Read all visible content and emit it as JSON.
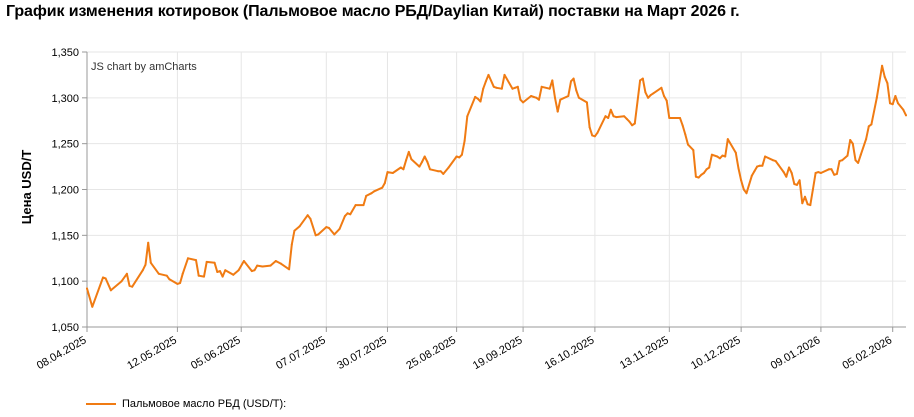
{
  "title": "График изменения котировок (Пальмовое масло РБД/Daylian Китай) поставки на Март 2026 г.",
  "credit": "JS chart by amCharts",
  "colors": {
    "series": "#f07b13",
    "grid": "#e6e6e6",
    "axis": "#999999"
  },
  "chart_data": {
    "type": "line",
    "ylabel": "Цена USD/T",
    "ylim": [
      1050,
      1350
    ],
    "yticks": [
      1050,
      1100,
      1150,
      1200,
      1250,
      1300,
      1350
    ],
    "ytick_labels": [
      "1,050",
      "1,100",
      "1,150",
      "1,200",
      "1,250",
      "1,300",
      "1,350"
    ],
    "x_range": [
      "2025-04-08",
      "2026-02-10"
    ],
    "xticks": [
      "2025-04-08",
      "2025-05-12",
      "2025-06-05",
      "2025-07-07",
      "2025-07-30",
      "2025-08-25",
      "2025-09-19",
      "2025-10-16",
      "2025-11-13",
      "2025-12-10",
      "2026-01-09",
      "2026-02-05"
    ],
    "xtick_labels": [
      "08.04.2025",
      "12.05.2025",
      "05.06.2025",
      "07.07.2025",
      "30.07.2025",
      "25.08.2025",
      "19.09.2025",
      "16.10.2025",
      "13.11.2025",
      "10.12.2025",
      "09.01.2026",
      "05.02.2026"
    ],
    "grid": true,
    "legend_position": "bottom-left",
    "series": [
      {
        "name": "Пальмовое масло РБД (USD/T):",
        "color": "#f07b13",
        "points": [
          [
            "2025-04-08",
            1092
          ],
          [
            "2025-04-10",
            1072
          ],
          [
            "2025-04-14",
            1104
          ],
          [
            "2025-04-15",
            1103
          ],
          [
            "2025-04-17",
            1090
          ],
          [
            "2025-04-21",
            1100
          ],
          [
            "2025-04-23",
            1108
          ],
          [
            "2025-04-24",
            1095
          ],
          [
            "2025-04-25",
            1094
          ],
          [
            "2025-04-29",
            1112
          ],
          [
            "2025-04-30",
            1118
          ],
          [
            "2025-05-01",
            1142
          ],
          [
            "2025-05-02",
            1120
          ],
          [
            "2025-05-05",
            1108
          ],
          [
            "2025-05-08",
            1106
          ],
          [
            "2025-05-09",
            1102
          ],
          [
            "2025-05-12",
            1097
          ],
          [
            "2025-05-13",
            1098
          ],
          [
            "2025-05-14",
            1108
          ],
          [
            "2025-05-16",
            1125
          ],
          [
            "2025-05-19",
            1123
          ],
          [
            "2025-05-20",
            1106
          ],
          [
            "2025-05-22",
            1105
          ],
          [
            "2025-05-23",
            1121
          ],
          [
            "2025-05-26",
            1120
          ],
          [
            "2025-05-27",
            1110
          ],
          [
            "2025-05-28",
            1111
          ],
          [
            "2025-05-29",
            1105
          ],
          [
            "2025-05-30",
            1112
          ],
          [
            "2025-06-02",
            1107
          ],
          [
            "2025-06-04",
            1112
          ],
          [
            "2025-06-06",
            1122
          ],
          [
            "2025-06-09",
            1111
          ],
          [
            "2025-06-10",
            1112
          ],
          [
            "2025-06-11",
            1117
          ],
          [
            "2025-06-13",
            1116
          ],
          [
            "2025-06-16",
            1117
          ],
          [
            "2025-06-18",
            1122
          ],
          [
            "2025-06-20",
            1119
          ],
          [
            "2025-06-23",
            1113
          ],
          [
            "2025-06-24",
            1140
          ],
          [
            "2025-06-25",
            1155
          ],
          [
            "2025-06-27",
            1160
          ],
          [
            "2025-06-30",
            1172
          ],
          [
            "2025-07-01",
            1168
          ],
          [
            "2025-07-03",
            1150
          ],
          [
            "2025-07-04",
            1151
          ],
          [
            "2025-07-07",
            1159
          ],
          [
            "2025-07-08",
            1158
          ],
          [
            "2025-07-10",
            1151
          ],
          [
            "2025-07-12",
            1157
          ],
          [
            "2025-07-14",
            1171
          ],
          [
            "2025-07-15",
            1174
          ],
          [
            "2025-07-16",
            1173
          ],
          [
            "2025-07-18",
            1183
          ],
          [
            "2025-07-21",
            1183
          ],
          [
            "2025-07-22",
            1193
          ],
          [
            "2025-07-24",
            1196
          ],
          [
            "2025-07-25",
            1198
          ],
          [
            "2025-07-28",
            1202
          ],
          [
            "2025-07-29",
            1207
          ],
          [
            "2025-07-30",
            1219
          ],
          [
            "2025-08-01",
            1218
          ],
          [
            "2025-08-04",
            1224
          ],
          [
            "2025-08-05",
            1222
          ],
          [
            "2025-08-06",
            1232
          ],
          [
            "2025-08-07",
            1241
          ],
          [
            "2025-08-08",
            1233
          ],
          [
            "2025-08-11",
            1225
          ],
          [
            "2025-08-12",
            1230
          ],
          [
            "2025-08-13",
            1236
          ],
          [
            "2025-08-14",
            1230
          ],
          [
            "2025-08-15",
            1222
          ],
          [
            "2025-08-18",
            1220
          ],
          [
            "2025-08-19",
            1220
          ],
          [
            "2025-08-20",
            1217
          ],
          [
            "2025-08-22",
            1224
          ],
          [
            "2025-08-25",
            1236
          ],
          [
            "2025-08-26",
            1235
          ],
          [
            "2025-08-27",
            1238
          ],
          [
            "2025-08-28",
            1253
          ],
          [
            "2025-08-29",
            1280
          ],
          [
            "2025-09-01",
            1301
          ],
          [
            "2025-09-02",
            1299
          ],
          [
            "2025-09-03",
            1296
          ],
          [
            "2025-09-04",
            1310
          ],
          [
            "2025-09-05",
            1318
          ],
          [
            "2025-09-06",
            1325
          ],
          [
            "2025-09-08",
            1312
          ],
          [
            "2025-09-09",
            1311
          ],
          [
            "2025-09-11",
            1310
          ],
          [
            "2025-09-12",
            1325
          ],
          [
            "2025-09-15",
            1310
          ],
          [
            "2025-09-16",
            1311
          ],
          [
            "2025-09-17",
            1312
          ],
          [
            "2025-09-18",
            1298
          ],
          [
            "2025-09-19",
            1295
          ],
          [
            "2025-09-22",
            1302
          ],
          [
            "2025-09-23",
            1301
          ],
          [
            "2025-09-24",
            1300
          ],
          [
            "2025-09-25",
            1298
          ],
          [
            "2025-09-26",
            1312
          ],
          [
            "2025-09-29",
            1310
          ],
          [
            "2025-09-30",
            1319
          ],
          [
            "2025-10-01",
            1300
          ],
          [
            "2025-10-02",
            1285
          ],
          [
            "2025-10-03",
            1298
          ],
          [
            "2025-10-06",
            1302
          ],
          [
            "2025-10-07",
            1318
          ],
          [
            "2025-10-08",
            1321
          ],
          [
            "2025-10-09",
            1308
          ],
          [
            "2025-10-10",
            1300
          ],
          [
            "2025-10-13",
            1295
          ],
          [
            "2025-10-14",
            1268
          ],
          [
            "2025-10-15",
            1259
          ],
          [
            "2025-10-16",
            1258
          ],
          [
            "2025-10-17",
            1262
          ],
          [
            "2025-10-20",
            1280
          ],
          [
            "2025-10-21",
            1278
          ],
          [
            "2025-10-22",
            1287
          ],
          [
            "2025-10-23",
            1280
          ],
          [
            "2025-10-24",
            1279
          ],
          [
            "2025-10-27",
            1280
          ],
          [
            "2025-10-28",
            1277
          ],
          [
            "2025-10-29",
            1274
          ],
          [
            "2025-10-30",
            1270
          ],
          [
            "2025-10-31",
            1272
          ],
          [
            "2025-11-02",
            1319
          ],
          [
            "2025-11-03",
            1321
          ],
          [
            "2025-11-04",
            1306
          ],
          [
            "2025-11-05",
            1300
          ],
          [
            "2025-11-06",
            1303
          ],
          [
            "2025-11-07",
            1305
          ],
          [
            "2025-11-10",
            1311
          ],
          [
            "2025-11-11",
            1302
          ],
          [
            "2025-11-12",
            1297
          ],
          [
            "2025-11-13",
            1278
          ],
          [
            "2025-11-14",
            1278
          ],
          [
            "2025-11-17",
            1278
          ],
          [
            "2025-11-18",
            1270
          ],
          [
            "2025-11-19",
            1260
          ],
          [
            "2025-11-20",
            1249
          ],
          [
            "2025-11-22",
            1243
          ],
          [
            "2025-11-23",
            1214
          ],
          [
            "2025-11-24",
            1213
          ],
          [
            "2025-11-25",
            1216
          ],
          [
            "2025-11-26",
            1218
          ],
          [
            "2025-11-27",
            1222
          ],
          [
            "2025-11-28",
            1224
          ],
          [
            "2025-11-29",
            1238
          ],
          [
            "2025-12-01",
            1236
          ],
          [
            "2025-12-02",
            1234
          ],
          [
            "2025-12-03",
            1237
          ],
          [
            "2025-12-04",
            1236
          ],
          [
            "2025-12-05",
            1255
          ],
          [
            "2025-12-08",
            1240
          ],
          [
            "2025-12-09",
            1223
          ],
          [
            "2025-12-10",
            1210
          ],
          [
            "2025-12-11",
            1200
          ],
          [
            "2025-12-12",
            1196
          ],
          [
            "2025-12-14",
            1215
          ],
          [
            "2025-12-15",
            1220
          ],
          [
            "2025-12-16",
            1225
          ],
          [
            "2025-12-17",
            1226
          ],
          [
            "2025-12-18",
            1226
          ],
          [
            "2025-12-19",
            1236
          ],
          [
            "2025-12-22",
            1232
          ],
          [
            "2025-12-23",
            1231
          ],
          [
            "2025-12-24",
            1227
          ],
          [
            "2025-12-26",
            1219
          ],
          [
            "2025-12-27",
            1214
          ],
          [
            "2025-12-28",
            1224
          ],
          [
            "2025-12-29",
            1218
          ],
          [
            "2025-12-30",
            1206
          ],
          [
            "2025-12-31",
            1205
          ],
          [
            "2026-01-01",
            1210
          ],
          [
            "2026-01-02",
            1185
          ],
          [
            "2026-01-03",
            1192
          ],
          [
            "2026-01-04",
            1184
          ],
          [
            "2026-01-05",
            1183
          ],
          [
            "2026-01-06",
            1200
          ],
          [
            "2026-01-07",
            1218
          ],
          [
            "2026-01-08",
            1219
          ],
          [
            "2026-01-09",
            1218
          ],
          [
            "2026-01-12",
            1222
          ],
          [
            "2026-01-13",
            1222
          ],
          [
            "2026-01-14",
            1216
          ],
          [
            "2026-01-15",
            1217
          ],
          [
            "2026-01-16",
            1231
          ],
          [
            "2026-01-17",
            1232
          ],
          [
            "2026-01-19",
            1237
          ],
          [
            "2026-01-20",
            1254
          ],
          [
            "2026-01-21",
            1250
          ],
          [
            "2026-01-22",
            1232
          ],
          [
            "2026-01-23",
            1229
          ],
          [
            "2026-01-24",
            1238
          ],
          [
            "2026-01-26",
            1255
          ],
          [
            "2026-01-27",
            1269
          ],
          [
            "2026-01-28",
            1271
          ],
          [
            "2026-01-30",
            1300
          ],
          [
            "2026-02-01",
            1335
          ],
          [
            "2026-02-02",
            1323
          ],
          [
            "2026-02-03",
            1316
          ],
          [
            "2026-02-04",
            1294
          ],
          [
            "2026-02-05",
            1293
          ],
          [
            "2026-02-06",
            1302
          ],
          [
            "2026-02-07",
            1294
          ],
          [
            "2026-02-09",
            1287
          ],
          [
            "2026-02-10",
            1281
          ]
        ]
      }
    ]
  }
}
